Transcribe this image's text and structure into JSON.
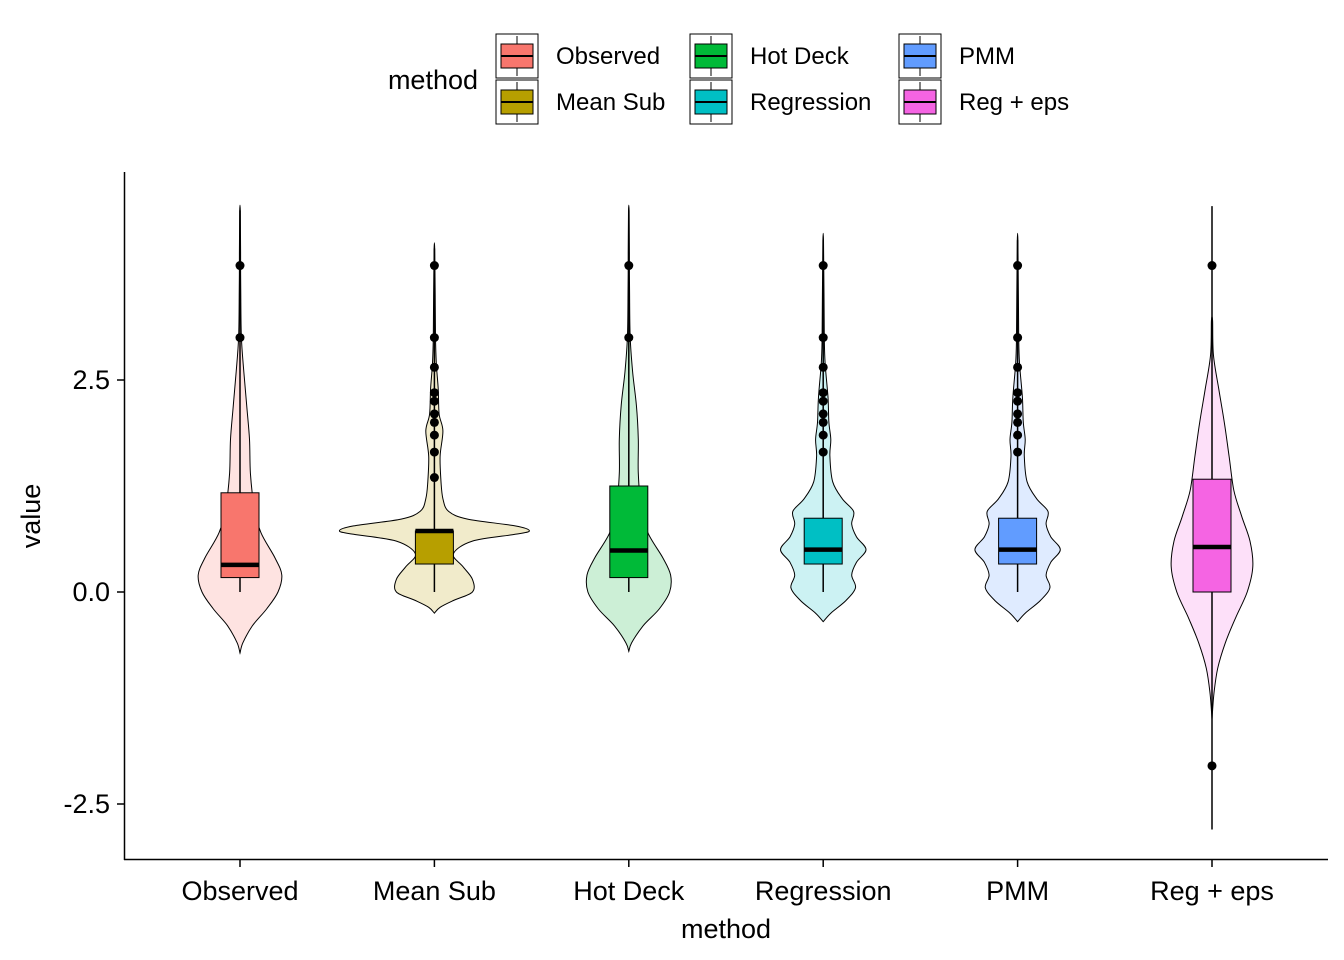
{
  "chart_data": {
    "type": "violin-box",
    "xlabel": "method",
    "ylabel": "value",
    "ylim": [
      -2.8,
      4.6
    ],
    "yticks": [
      -2.5,
      0.0,
      2.5
    ],
    "ytick_labels": [
      "-2.5",
      "0.0",
      "2.5"
    ],
    "legend": {
      "title": "method",
      "placement": "top",
      "items": [
        {
          "label": "Observed",
          "color": "#F8766D"
        },
        {
          "label": "Mean Sub",
          "color": "#B79F00"
        },
        {
          "label": "Hot Deck",
          "color": "#00BA38"
        },
        {
          "label": "Regression",
          "color": "#00BFC4"
        },
        {
          "label": "PMM",
          "color": "#619CFF"
        },
        {
          "label": "Reg + eps",
          "color": "#F564E3"
        }
      ]
    },
    "categories": [
      "Observed",
      "Mean Sub",
      "Hot Deck",
      "Regression",
      "PMM",
      "Reg + eps"
    ],
    "series": [
      {
        "label": "Observed",
        "color": "#F8766D",
        "light": "#FEE3E1",
        "box": {
          "q1": 0.17,
          "median": 0.32,
          "q3": 1.17,
          "whisker_low": 0.0,
          "whisker_high": 4.5
        },
        "outliers": [
          3.85,
          3.0
        ],
        "violin": [
          [
            -0.72,
            0
          ],
          [
            -0.6,
            0.03
          ],
          [
            -0.4,
            0.13
          ],
          [
            -0.2,
            0.28
          ],
          [
            0,
            0.4
          ],
          [
            0.2,
            0.44
          ],
          [
            0.4,
            0.37
          ],
          [
            0.7,
            0.22
          ],
          [
            1.0,
            0.15
          ],
          [
            1.4,
            0.11
          ],
          [
            1.8,
            0.1
          ],
          [
            2.2,
            0.07
          ],
          [
            2.6,
            0.04
          ],
          [
            3.0,
            0.015
          ],
          [
            3.5,
            0.008
          ],
          [
            4.0,
            0.006
          ],
          [
            4.5,
            0.003
          ]
        ]
      },
      {
        "label": "Mean Sub",
        "color": "#B79F00",
        "light": "#F1EBCB",
        "box": {
          "q1": 0.33,
          "median": 0.72,
          "q3": 0.72,
          "whisker_low": 0.0,
          "whisker_high": 4.05
        },
        "outliers": [
          3.85,
          3.0,
          2.65,
          2.35,
          2.25,
          2.1,
          2.0,
          1.85,
          1.65,
          1.35
        ],
        "violin": [
          [
            -0.25,
            0
          ],
          [
            -0.18,
            0.06
          ],
          [
            -0.1,
            0.2
          ],
          [
            0,
            0.4
          ],
          [
            0.15,
            0.4
          ],
          [
            0.3,
            0.3
          ],
          [
            0.45,
            0.2
          ],
          [
            0.6,
            0.4
          ],
          [
            0.68,
            0.85
          ],
          [
            0.72,
            1.0
          ],
          [
            0.78,
            0.85
          ],
          [
            0.86,
            0.35
          ],
          [
            0.95,
            0.15
          ],
          [
            1.1,
            0.09
          ],
          [
            1.3,
            0.07
          ],
          [
            1.6,
            0.06
          ],
          [
            1.9,
            0.09
          ],
          [
            2.1,
            0.05
          ],
          [
            2.4,
            0.04
          ],
          [
            2.7,
            0.02
          ],
          [
            3.0,
            0.012
          ],
          [
            3.5,
            0.008
          ],
          [
            4.05,
            0.003
          ]
        ]
      },
      {
        "label": "Hot Deck",
        "color": "#00BA38",
        "light": "#CCEFD6",
        "box": {
          "q1": 0.17,
          "median": 0.49,
          "q3": 1.25,
          "whisker_low": 0.0,
          "whisker_high": 4.5
        },
        "outliers": [
          3.85,
          3.0
        ],
        "violin": [
          [
            -0.7,
            0
          ],
          [
            -0.6,
            0.03
          ],
          [
            -0.4,
            0.15
          ],
          [
            -0.2,
            0.32
          ],
          [
            0,
            0.43
          ],
          [
            0.2,
            0.44
          ],
          [
            0.4,
            0.36
          ],
          [
            0.7,
            0.2
          ],
          [
            1.0,
            0.13
          ],
          [
            1.4,
            0.1
          ],
          [
            1.8,
            0.1
          ],
          [
            2.2,
            0.08
          ],
          [
            2.6,
            0.04
          ],
          [
            3.0,
            0.015
          ],
          [
            3.5,
            0.008
          ],
          [
            4.0,
            0.006
          ],
          [
            4.5,
            0.003
          ]
        ]
      },
      {
        "label": "Regression",
        "color": "#00BFC4",
        "light": "#CCF2F3",
        "box": {
          "q1": 0.33,
          "median": 0.5,
          "q3": 0.87,
          "whisker_low": 0.0,
          "whisker_high": 4.15
        },
        "outliers": [
          3.85,
          3.0,
          2.65,
          2.35,
          2.25,
          2.1,
          2.0,
          1.85,
          1.65
        ],
        "violin": [
          [
            -0.35,
            0
          ],
          [
            -0.25,
            0.08
          ],
          [
            -0.1,
            0.24
          ],
          [
            0.05,
            0.34
          ],
          [
            0.2,
            0.3
          ],
          [
            0.35,
            0.35
          ],
          [
            0.5,
            0.45
          ],
          [
            0.65,
            0.35
          ],
          [
            0.8,
            0.3
          ],
          [
            0.95,
            0.32
          ],
          [
            1.1,
            0.2
          ],
          [
            1.3,
            0.1
          ],
          [
            1.6,
            0.07
          ],
          [
            1.8,
            0.08
          ],
          [
            2.0,
            0.06
          ],
          [
            2.3,
            0.05
          ],
          [
            2.7,
            0.02
          ],
          [
            3.0,
            0.012
          ],
          [
            3.5,
            0.008
          ],
          [
            4.15,
            0.003
          ]
        ]
      },
      {
        "label": "PMM",
        "color": "#619CFF",
        "light": "#DFEBFF",
        "box": {
          "q1": 0.33,
          "median": 0.5,
          "q3": 0.87,
          "whisker_low": 0.0,
          "whisker_high": 4.15
        },
        "outliers": [
          3.85,
          3.0,
          2.65,
          2.35,
          2.25,
          2.1,
          2.0,
          1.85,
          1.65
        ],
        "violin": [
          [
            -0.35,
            0
          ],
          [
            -0.25,
            0.08
          ],
          [
            -0.1,
            0.24
          ],
          [
            0.05,
            0.34
          ],
          [
            0.2,
            0.3
          ],
          [
            0.35,
            0.35
          ],
          [
            0.5,
            0.45
          ],
          [
            0.65,
            0.35
          ],
          [
            0.8,
            0.3
          ],
          [
            0.95,
            0.32
          ],
          [
            1.1,
            0.2
          ],
          [
            1.3,
            0.1
          ],
          [
            1.6,
            0.07
          ],
          [
            1.8,
            0.08
          ],
          [
            2.0,
            0.06
          ],
          [
            2.3,
            0.05
          ],
          [
            2.7,
            0.02
          ],
          [
            3.0,
            0.012
          ],
          [
            3.5,
            0.008
          ],
          [
            4.15,
            0.003
          ]
        ]
      },
      {
        "label": "Reg + eps",
        "color": "#F564E3",
        "light": "#FDE0F9",
        "box": {
          "q1": 0.0,
          "median": 0.53,
          "q3": 1.33,
          "whisker_low": -2.8,
          "whisker_high": 4.55
        },
        "outliers": [
          3.85,
          -2.05
        ],
        "violin": [
          [
            -1.5,
            0
          ],
          [
            -1.2,
            0.02
          ],
          [
            -0.9,
            0.06
          ],
          [
            -0.6,
            0.14
          ],
          [
            -0.3,
            0.25
          ],
          [
            0,
            0.37
          ],
          [
            0.3,
            0.43
          ],
          [
            0.6,
            0.4
          ],
          [
            0.9,
            0.31
          ],
          [
            1.2,
            0.23
          ],
          [
            1.6,
            0.18
          ],
          [
            2.0,
            0.13
          ],
          [
            2.4,
            0.07
          ],
          [
            2.8,
            0.015
          ],
          [
            3.2,
            0.006
          ]
        ]
      }
    ]
  }
}
